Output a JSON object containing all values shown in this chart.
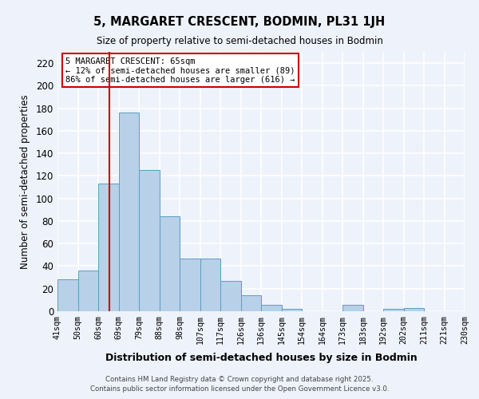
{
  "title": "5, MARGARET CRESCENT, BODMIN, PL31 1JH",
  "subtitle": "Size of property relative to semi-detached houses in Bodmin",
  "xlabel": "Distribution of semi-detached houses by size in Bodmin",
  "ylabel": "Number of semi-detached properties",
  "bar_values": [
    28,
    36,
    113,
    176,
    125,
    84,
    47,
    47,
    27,
    14,
    6,
    2,
    0,
    0,
    6,
    0,
    2,
    3
  ],
  "bin_labels": [
    "41sqm",
    "50sqm",
    "60sqm",
    "69sqm",
    "79sqm",
    "88sqm",
    "98sqm",
    "107sqm",
    "117sqm",
    "126sqm",
    "136sqm",
    "145sqm",
    "154sqm",
    "164sqm",
    "173sqm",
    "183sqm",
    "192sqm",
    "202sqm",
    "211sqm",
    "221sqm",
    "230sqm"
  ],
  "bar_color": "#b8d0e8",
  "bar_edge_color": "#5a9ec0",
  "vline_color": "#cc0000",
  "annotation_title": "5 MARGARET CRESCENT: 65sqm",
  "annotation_line1": "← 12% of semi-detached houses are smaller (89)",
  "annotation_line2": "86% of semi-detached houses are larger (616) →",
  "ylim": [
    0,
    230
  ],
  "yticks": [
    0,
    20,
    40,
    60,
    80,
    100,
    120,
    140,
    160,
    180,
    200,
    220
  ],
  "footer1": "Contains HM Land Registry data © Crown copyright and database right 2025.",
  "footer2": "Contains public sector information licensed under the Open Government Licence v3.0.",
  "background_color": "#eef2fb",
  "grid_color": "#ffffff",
  "fig_width": 6.0,
  "fig_height": 5.0
}
